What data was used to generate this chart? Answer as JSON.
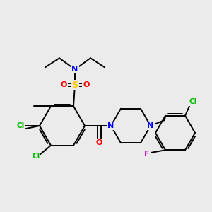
{
  "bg_color": "#ebebeb",
  "atom_colors": {
    "C": "#000000",
    "N": "#0000ff",
    "O": "#ff0000",
    "S": "#ffcc00",
    "Cl": "#00bb00",
    "F": "#cc00cc"
  }
}
